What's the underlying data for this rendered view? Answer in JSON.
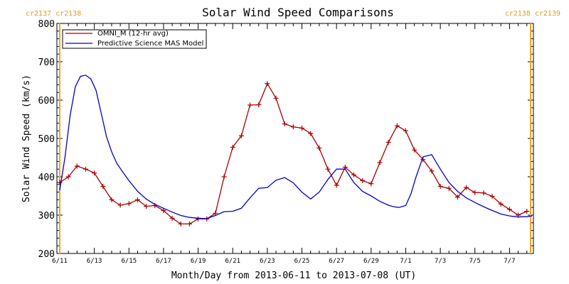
{
  "chart_data": {
    "type": "line",
    "title": "Solar Wind Speed Comparisons",
    "xlabel": "Month/Day from 2013-06-11 to 2013-07-08 (UT)",
    "ylabel": "Solar Wind Speed (km/s)",
    "ylim": [
      200,
      800
    ],
    "xlim_days": [
      0,
      27.3
    ],
    "yticks": [
      200,
      300,
      400,
      500,
      600,
      700,
      800
    ],
    "x_tick_labels": [
      "6/11",
      "6/13",
      "6/15",
      "6/17",
      "6/19",
      "6/21",
      "6/23",
      "6/25",
      "6/27",
      "6/29",
      "7/1",
      "7/3",
      "7/5",
      "7/7"
    ],
    "x_tick_days": [
      0,
      2,
      4,
      6,
      8,
      10,
      12,
      14,
      16,
      18,
      20,
      22,
      24,
      26
    ],
    "legend_placement": "top-left",
    "grid": false,
    "rotation_markers": [
      {
        "day": 0.0,
        "label": "cr2137 cr2138",
        "side": "left"
      },
      {
        "day": 27.2,
        "label": "cr2138 cr2139",
        "side": "right"
      }
    ],
    "series": [
      {
        "name": "OMNI_M (12-hr avg)",
        "color": "#aa0000",
        "marker": "plus",
        "x": [
          0.0,
          0.5,
          1.0,
          1.5,
          2.0,
          2.5,
          3.0,
          3.5,
          4.0,
          4.5,
          5.0,
          5.5,
          6.0,
          6.5,
          7.0,
          7.5,
          8.0,
          8.5,
          9.0,
          9.5,
          10.0,
          10.5,
          11.0,
          11.5,
          12.0,
          12.5,
          13.0,
          13.5,
          14.0,
          14.5,
          15.0,
          15.5,
          16.0,
          16.5,
          17.0,
          17.5,
          18.0,
          18.5,
          19.0,
          19.5,
          20.0,
          20.5,
          21.0,
          21.5,
          22.0,
          22.5,
          23.0,
          23.5,
          24.0,
          24.5,
          25.0,
          25.5,
          26.0,
          26.5,
          27.0
        ],
        "y": [
          385,
          400,
          428,
          420,
          410,
          375,
          340,
          326,
          330,
          340,
          323,
          325,
          312,
          292,
          277,
          277,
          290,
          290,
          305,
          400,
          477,
          507,
          587,
          588,
          643,
          605,
          538,
          530,
          527,
          513,
          475,
          420,
          378,
          425,
          405,
          390,
          382,
          437,
          490,
          533,
          520,
          470,
          445,
          415,
          375,
          370,
          347,
          372,
          359,
          358,
          349,
          329,
          315,
          300,
          310
        ]
      },
      {
        "name": "Predictive Science MAS Model",
        "color": "#0000cc",
        "marker": "none",
        "x": [
          0.0,
          0.3,
          0.6,
          0.9,
          1.2,
          1.5,
          1.8,
          2.1,
          2.4,
          2.7,
          3.0,
          3.3,
          3.6,
          4.0,
          4.5,
          5.0,
          5.5,
          6.0,
          6.5,
          7.0,
          7.5,
          8.0,
          8.5,
          9.0,
          9.5,
          10.0,
          10.5,
          11.0,
          11.5,
          12.0,
          12.5,
          13.0,
          13.5,
          14.0,
          14.5,
          15.0,
          15.5,
          16.0,
          16.5,
          17.0,
          17.5,
          18.0,
          18.5,
          19.0,
          19.3,
          19.6,
          20.0,
          20.3,
          20.6,
          21.0,
          21.5,
          22.0,
          22.5,
          23.0,
          23.5,
          24.0,
          24.5,
          25.0,
          25.5,
          26.0,
          26.5,
          26.8,
          27.0,
          27.3
        ],
        "y": [
          365,
          450,
          560,
          635,
          662,
          665,
          655,
          625,
          565,
          505,
          465,
          435,
          415,
          390,
          362,
          342,
          328,
          318,
          308,
          299,
          294,
          292,
          291,
          299,
          309,
          310,
          318,
          345,
          370,
          372,
          391,
          398,
          384,
          360,
          342,
          360,
          393,
          420,
          420,
          385,
          362,
          350,
          336,
          326,
          322,
          320,
          325,
          355,
          400,
          452,
          458,
          420,
          385,
          362,
          345,
          333,
          322,
          312,
          303,
          298,
          295,
          296,
          296,
          298
        ]
      }
    ]
  }
}
